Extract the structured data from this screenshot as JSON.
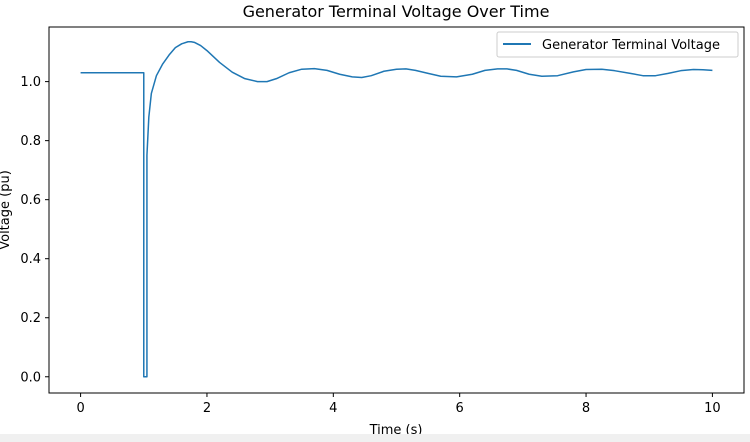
{
  "chart_data": {
    "type": "line",
    "title": "Generator Terminal Voltage Over Time",
    "xlabel": "Time (s)",
    "ylabel": "Voltage (pu)",
    "xlim": [
      -0.5,
      10.5
    ],
    "ylim": [
      -0.055,
      1.185
    ],
    "xticks": [
      0,
      2,
      4,
      6,
      8,
      10
    ],
    "xtick_labels": [
      "0",
      "2",
      "4",
      "6",
      "8",
      "10"
    ],
    "yticks": [
      0.0,
      0.2,
      0.4,
      0.6,
      0.8,
      1.0
    ],
    "ytick_labels": [
      "0.0",
      "0.2",
      "0.4",
      "0.6",
      "0.8",
      "1.0"
    ],
    "grid": false,
    "legend_position": "upper right",
    "line_color": "#1f77b4",
    "series": [
      {
        "name": "Generator Terminal Voltage",
        "x": [
          0,
          0.5,
          1.0,
          1.0,
          1.05,
          1.05,
          1.08,
          1.12,
          1.2,
          1.3,
          1.4,
          1.5,
          1.6,
          1.7,
          1.75,
          1.8,
          1.9,
          2.0,
          2.2,
          2.4,
          2.6,
          2.8,
          2.95,
          3.1,
          3.3,
          3.5,
          3.7,
          3.9,
          4.1,
          4.3,
          4.45,
          4.6,
          4.8,
          5.0,
          5.15,
          5.3,
          5.5,
          5.7,
          5.95,
          6.2,
          6.4,
          6.6,
          6.75,
          6.9,
          7.1,
          7.3,
          7.55,
          7.8,
          8.0,
          8.25,
          8.45,
          8.7,
          8.9,
          9.1,
          9.3,
          9.5,
          9.7,
          9.85,
          10.0
        ],
        "values": [
          1.03,
          1.03,
          1.03,
          0.0,
          0.0,
          0.75,
          0.88,
          0.96,
          1.02,
          1.06,
          1.09,
          1.115,
          1.128,
          1.135,
          1.135,
          1.133,
          1.122,
          1.105,
          1.065,
          1.032,
          1.01,
          1.0,
          1.0,
          1.01,
          1.03,
          1.042,
          1.044,
          1.038,
          1.025,
          1.016,
          1.014,
          1.02,
          1.035,
          1.042,
          1.043,
          1.038,
          1.028,
          1.018,
          1.016,
          1.025,
          1.038,
          1.043,
          1.043,
          1.038,
          1.025,
          1.018,
          1.02,
          1.033,
          1.041,
          1.042,
          1.037,
          1.028,
          1.02,
          1.02,
          1.028,
          1.037,
          1.041,
          1.04,
          1.038
        ]
      }
    ]
  }
}
